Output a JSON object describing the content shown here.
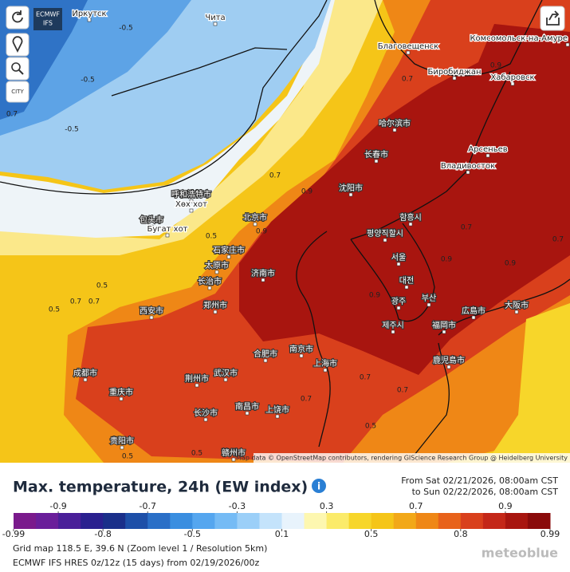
{
  "toolbar": {
    "model_line1": "ECMWF",
    "model_line2": "IFS",
    "city_button": "CITY"
  },
  "map": {
    "labels": [
      "Иркутск",
      "Чита",
      "Благовещенск",
      "Комсомольск-на-Амуре",
      "Биробиджан",
      "Хабаровск",
      "Арсеньев",
      "Владивосток",
      "哈尔滨市",
      "长春市",
      "沈阳市",
      "함흥시",
      "평양직할시",
      "서울",
      "대전",
      "광주",
      "부산",
      "제주시",
      "北京市",
      "石家庄市",
      "太原市",
      "济南市",
      "长治市",
      "郑州市",
      "西安市",
      "南京市",
      "合肥市",
      "武汉市",
      "荆州市",
      "上海市",
      "成都市",
      "重庆市",
      "长沙市",
      "南昌市",
      "上饶市",
      "贵阳市",
      "赣州市",
      "広島市",
      "大阪市",
      "福岡市",
      "鹿児島市",
      "呼和浩特市",
      "Хөх хот",
      "包头市",
      "Бугат хот"
    ],
    "contours": [
      -0.5,
      -0.5,
      -0.5,
      0.7,
      0.7,
      0.5,
      0.5,
      0.5,
      0.5,
      0.5,
      0.5,
      0.7,
      0.7,
      0.7,
      0.7,
      0.7,
      0.7,
      0.9,
      0.9,
      0.9,
      0.9,
      0.9,
      0.9,
      0.7,
      0.7
    ],
    "attribution": "Map data © OpenStreetMap contributors, rendering GIScience Research Group @ Heidelberg University"
  },
  "panel": {
    "title": "Max. temperature, 24h (EW index)",
    "from": "From Sat 02/21/2026, 08:00am CST",
    "to": "to Sun 02/22/2026, 08:00am CST",
    "grid": "Grid map 118.5 E, 39.6 N (Zoom level 1 / Resolution 5km)",
    "model": "ECMWF IFS HRES 0z/12z (15 days) from 02/19/2026/00z",
    "brand": "meteoblue"
  },
  "colorbar": {
    "ticks": [
      -0.99,
      -0.9,
      -0.8,
      -0.7,
      -0.5,
      -0.3,
      0.1,
      0.3,
      0.5,
      0.7,
      0.8,
      0.9,
      0.99
    ],
    "colors": [
      "#7a1a8c",
      "#6a1e9a",
      "#4a1f99",
      "#2a208f",
      "#1a2f8a",
      "#1d4fa8",
      "#2a6fc7",
      "#3a8ee0",
      "#55a6ef",
      "#75bbf5",
      "#9bcff8",
      "#c4e3fb",
      "#e8f3fc",
      "#fdf7b0",
      "#fbeb6a",
      "#f7d62a",
      "#f5c518",
      "#f2a818",
      "#ef8716",
      "#e8621a",
      "#d9401c",
      "#c42718",
      "#a8150f",
      "#8a0a0a"
    ]
  }
}
